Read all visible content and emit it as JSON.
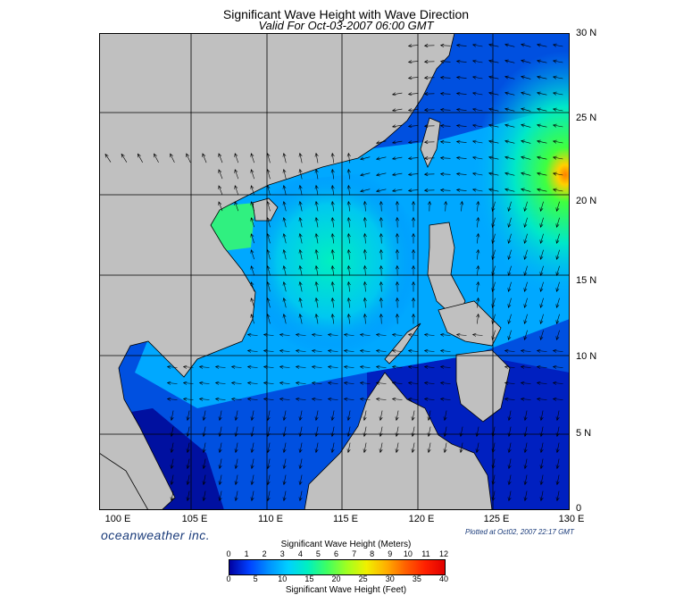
{
  "header": {
    "title": "Significant Wave Height with Wave Direction",
    "subtitle": "Valid For Oct-03-2007 06:00 GMT"
  },
  "axes": {
    "lat_labels": [
      "30 N",
      "25 N",
      "20 N",
      "15 N",
      "10 N",
      "5 N",
      "0"
    ],
    "lon_labels": [
      "100 E",
      "105 E",
      "110 E",
      "115 E",
      "120 E",
      "125 E",
      "130 E"
    ],
    "lat_range": [
      0,
      30
    ],
    "lon_range": [
      100,
      130
    ]
  },
  "footer": {
    "brand": "oceanweather inc.",
    "plotted": "Plotted at Oct02, 2007 22:17 GMT"
  },
  "colorbar": {
    "title_meters": "Significant Wave Height (Meters)",
    "title_feet": "Significant Wave Height (Feet)",
    "meter_ticks": [
      "0",
      "1",
      "2",
      "3",
      "4",
      "5",
      "6",
      "7",
      "8",
      "9",
      "10",
      "11",
      "12"
    ],
    "feet_ticks": [
      "0",
      "5",
      "10",
      "15",
      "20",
      "25",
      "30",
      "35",
      "40"
    ],
    "colors": [
      "#0000a0",
      "#0040ff",
      "#0090ff",
      "#00d0ff",
      "#00f0c0",
      "#40ff60",
      "#a0ff20",
      "#f0f000",
      "#ffb000",
      "#ff6000",
      "#ff2000",
      "#e00000"
    ]
  },
  "map_colors": {
    "land": "#c0c0c0",
    "deep_low": "#0010b0",
    "low": "#0050e0",
    "mid": "#00b0ff",
    "high": "#00e8c8",
    "higher": "#30f080",
    "peak": "#ff8000"
  }
}
